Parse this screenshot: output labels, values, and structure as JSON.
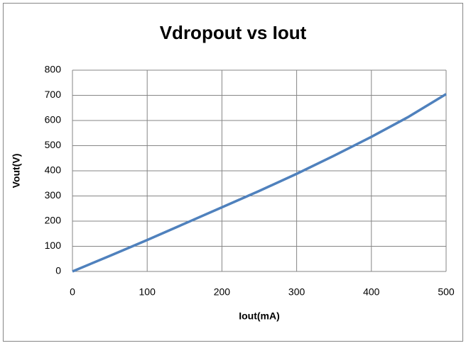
{
  "chart_data": {
    "type": "line",
    "title": "Vdropout vs Iout",
    "x_label": "Iout(mA)",
    "y_label": "Vout(V)",
    "x": [
      0,
      50,
      100,
      150,
      200,
      250,
      300,
      350,
      400,
      450,
      500
    ],
    "series": [
      {
        "name": "Vout",
        "color": "#4f81bd",
        "values": [
          0,
          62,
          125,
          190,
          255,
          320,
          388,
          460,
          535,
          615,
          705
        ]
      }
    ],
    "xlim": [
      0,
      500
    ],
    "xticks": [
      0,
      100,
      200,
      300,
      400,
      500
    ],
    "ylim": [
      0,
      800
    ],
    "yticks": [
      0,
      100,
      200,
      300,
      400,
      500,
      600,
      700,
      800
    ],
    "grid": true
  }
}
